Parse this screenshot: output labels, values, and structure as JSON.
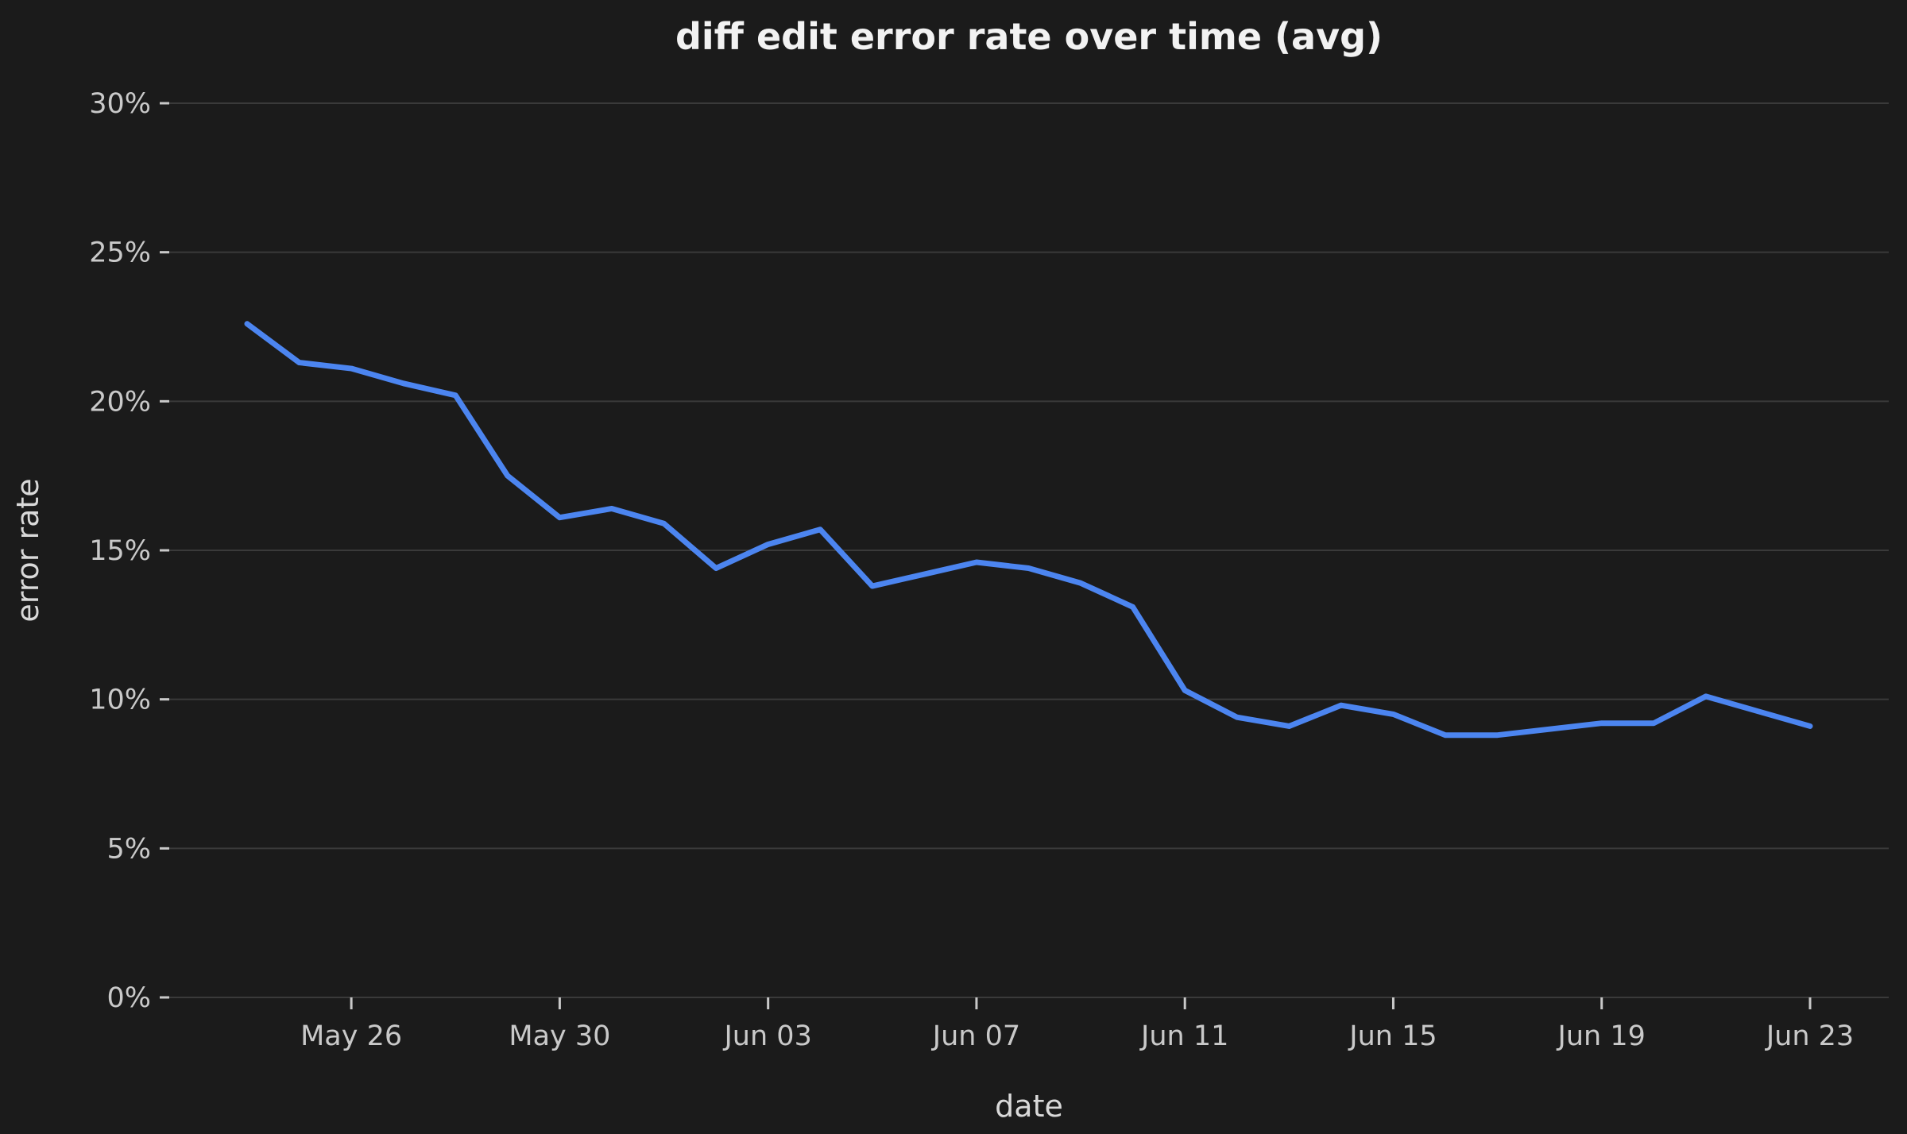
{
  "chart_data": {
    "type": "line",
    "title": "diff edit error rate over time (avg)",
    "xlabel": "date",
    "ylabel": "error rate",
    "x": [
      "May 24",
      "May 25",
      "May 26",
      "May 27",
      "May 28",
      "May 29",
      "May 30",
      "May 31",
      "Jun 01",
      "Jun 02",
      "Jun 03",
      "Jun 04",
      "Jun 05",
      "Jun 06",
      "Jun 07",
      "Jun 08",
      "Jun 09",
      "Jun 10",
      "Jun 11",
      "Jun 12",
      "Jun 13",
      "Jun 14",
      "Jun 15",
      "Jun 16",
      "Jun 17",
      "Jun 18",
      "Jun 19",
      "Jun 20",
      "Jun 21",
      "Jun 22",
      "Jun 23"
    ],
    "series": [
      {
        "name": "avg diff edit error rate (%)",
        "values": [
          22.6,
          21.3,
          21.1,
          20.6,
          20.2,
          17.5,
          16.1,
          16.4,
          15.9,
          14.4,
          15.2,
          15.7,
          13.8,
          14.2,
          14.6,
          14.4,
          13.9,
          13.1,
          10.3,
          9.4,
          9.1,
          9.8,
          9.5,
          8.8,
          8.8,
          9.0,
          9.2,
          9.2,
          10.1,
          9.6,
          9.1
        ]
      }
    ],
    "x_tick_labels": [
      "May 26",
      "May 30",
      "Jun 03",
      "Jun 07",
      "Jun 11",
      "Jun 15",
      "Jun 19",
      "Jun 23"
    ],
    "x_tick_indices": [
      2,
      6,
      10,
      14,
      18,
      22,
      26,
      30
    ],
    "y_ticks": [
      0,
      5,
      10,
      15,
      20,
      25,
      30
    ],
    "y_tick_suffix": "%",
    "ylim": [
      0,
      30
    ],
    "grid": true,
    "legend_position": "none",
    "colors": {
      "line": "#4c85f0",
      "background": "#1b1b1b",
      "grid": "#3a3a3a",
      "tick": "#c9c9c9",
      "axis_label": "#d9d9d9",
      "title": "#f2f2f2"
    }
  }
}
